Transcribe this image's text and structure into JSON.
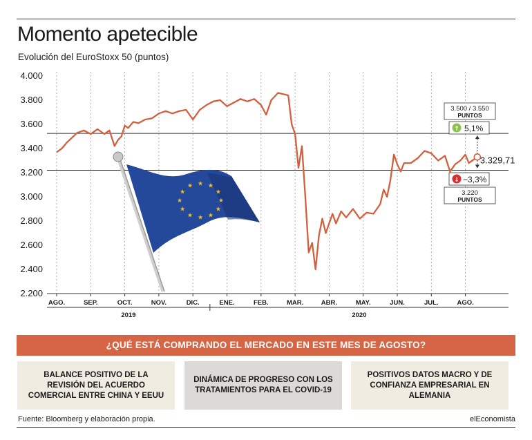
{
  "title": "Momento apetecible",
  "subtitle": "Evolución del EuroStoxx 50 (puntos)",
  "banner": "¿QUÉ ESTÁ COMPRANDO EL MERCADO EN ESTE MES DE AGOSTO?",
  "boxes": [
    {
      "text": "BALANCE POSITIVO DE LA REVISIÓN DEL ACUERDO COMERCIAL ENTRE CHINA Y EEUU"
    },
    {
      "text": "DINÁMICA DE PROGRESO CON LOS TRATAMIENTOS PARA EL COVID-19"
    },
    {
      "text": "POSITIVOS DATOS MACRO Y DE CONFIANZA EMPRESARIAL EN ALEMANIA"
    }
  ],
  "footer": {
    "source": "Fuente: Bloomberg y elaboración propia.",
    "brand": "elEconomista"
  },
  "colors": {
    "line": "#d2603e",
    "banner": "#d66545",
    "up": "#8cc24a",
    "down": "#d62d2d"
  },
  "chart_data": {
    "type": "line",
    "ylim": [
      2200,
      4000
    ],
    "yticks": [
      "4.000",
      "3.800",
      "3.600",
      "3.400",
      "3.200",
      "3.000",
      "2.800",
      "2.600",
      "2.400",
      "2.200"
    ],
    "ytick_values": [
      4000,
      3800,
      3600,
      3400,
      3200,
      3000,
      2800,
      2600,
      2400,
      2200
    ],
    "months": [
      "AGO.",
      "SEP.",
      "OCT.",
      "NOV.",
      "DIC.",
      "ENE.",
      "FEB.",
      "MAR.",
      "ABR.",
      "MAY.",
      "JUN.",
      "JUL.",
      "AGO."
    ],
    "years": [
      "2019",
      "2020"
    ],
    "x_range": [
      0,
      12.9
    ],
    "series": [
      {
        "x": [
          0,
          0.15,
          0.3,
          0.45,
          0.6,
          0.8,
          1.0,
          1.2,
          1.4,
          1.55,
          1.7,
          1.8,
          1.9,
          2.0,
          2.1,
          2.25,
          2.4,
          2.6,
          2.8,
          3.0,
          3.2,
          3.4,
          3.6,
          3.8,
          4.0,
          4.2,
          4.4,
          4.6,
          4.8,
          5.0,
          5.2,
          5.4,
          5.6,
          5.8,
          6.0,
          6.15,
          6.3,
          6.5,
          6.65,
          6.8,
          6.9,
          7.0,
          7.1,
          7.2,
          7.3,
          7.4,
          7.5,
          7.6,
          7.7,
          7.8,
          7.9,
          8.0,
          8.1,
          8.2,
          8.35,
          8.5,
          8.7,
          8.9,
          9.1,
          9.3,
          9.5,
          9.6,
          9.7,
          9.8,
          9.9,
          10.0,
          10.1,
          10.2,
          10.4,
          10.6,
          10.8,
          11.0,
          11.2,
          11.4,
          11.55,
          11.7,
          11.85,
          12.0,
          12.1,
          12.2,
          12.35
        ],
        "values": [
          3370,
          3400,
          3450,
          3490,
          3530,
          3550,
          3520,
          3560,
          3520,
          3550,
          3420,
          3470,
          3500,
          3590,
          3570,
          3620,
          3610,
          3640,
          3650,
          3690,
          3710,
          3690,
          3710,
          3720,
          3640,
          3720,
          3760,
          3790,
          3800,
          3750,
          3780,
          3810,
          3790,
          3810,
          3760,
          3680,
          3800,
          3860,
          3850,
          3840,
          3600,
          3520,
          3240,
          3420,
          3000,
          2540,
          2620,
          2400,
          2680,
          2820,
          2700,
          2780,
          2860,
          2780,
          2880,
          2830,
          2900,
          2820,
          2870,
          2860,
          2940,
          3060,
          3000,
          3140,
          3350,
          3270,
          3210,
          3280,
          3280,
          3320,
          3380,
          3360,
          3300,
          3340,
          3210,
          3270,
          3300,
          3350,
          3280,
          3300,
          3329.71
        ]
      }
    ],
    "reference_lines": [
      {
        "value": 3525,
        "label": "3.500 / 3.550",
        "unit": "PUNTOS",
        "change": "5,1%",
        "direction": "up"
      },
      {
        "value": 3220,
        "label": "3.220",
        "unit": "PUNTOS",
        "change": "−3,3%",
        "direction": "down"
      }
    ],
    "last_value_label": "3.329,71",
    "last_value": 3329.71
  }
}
